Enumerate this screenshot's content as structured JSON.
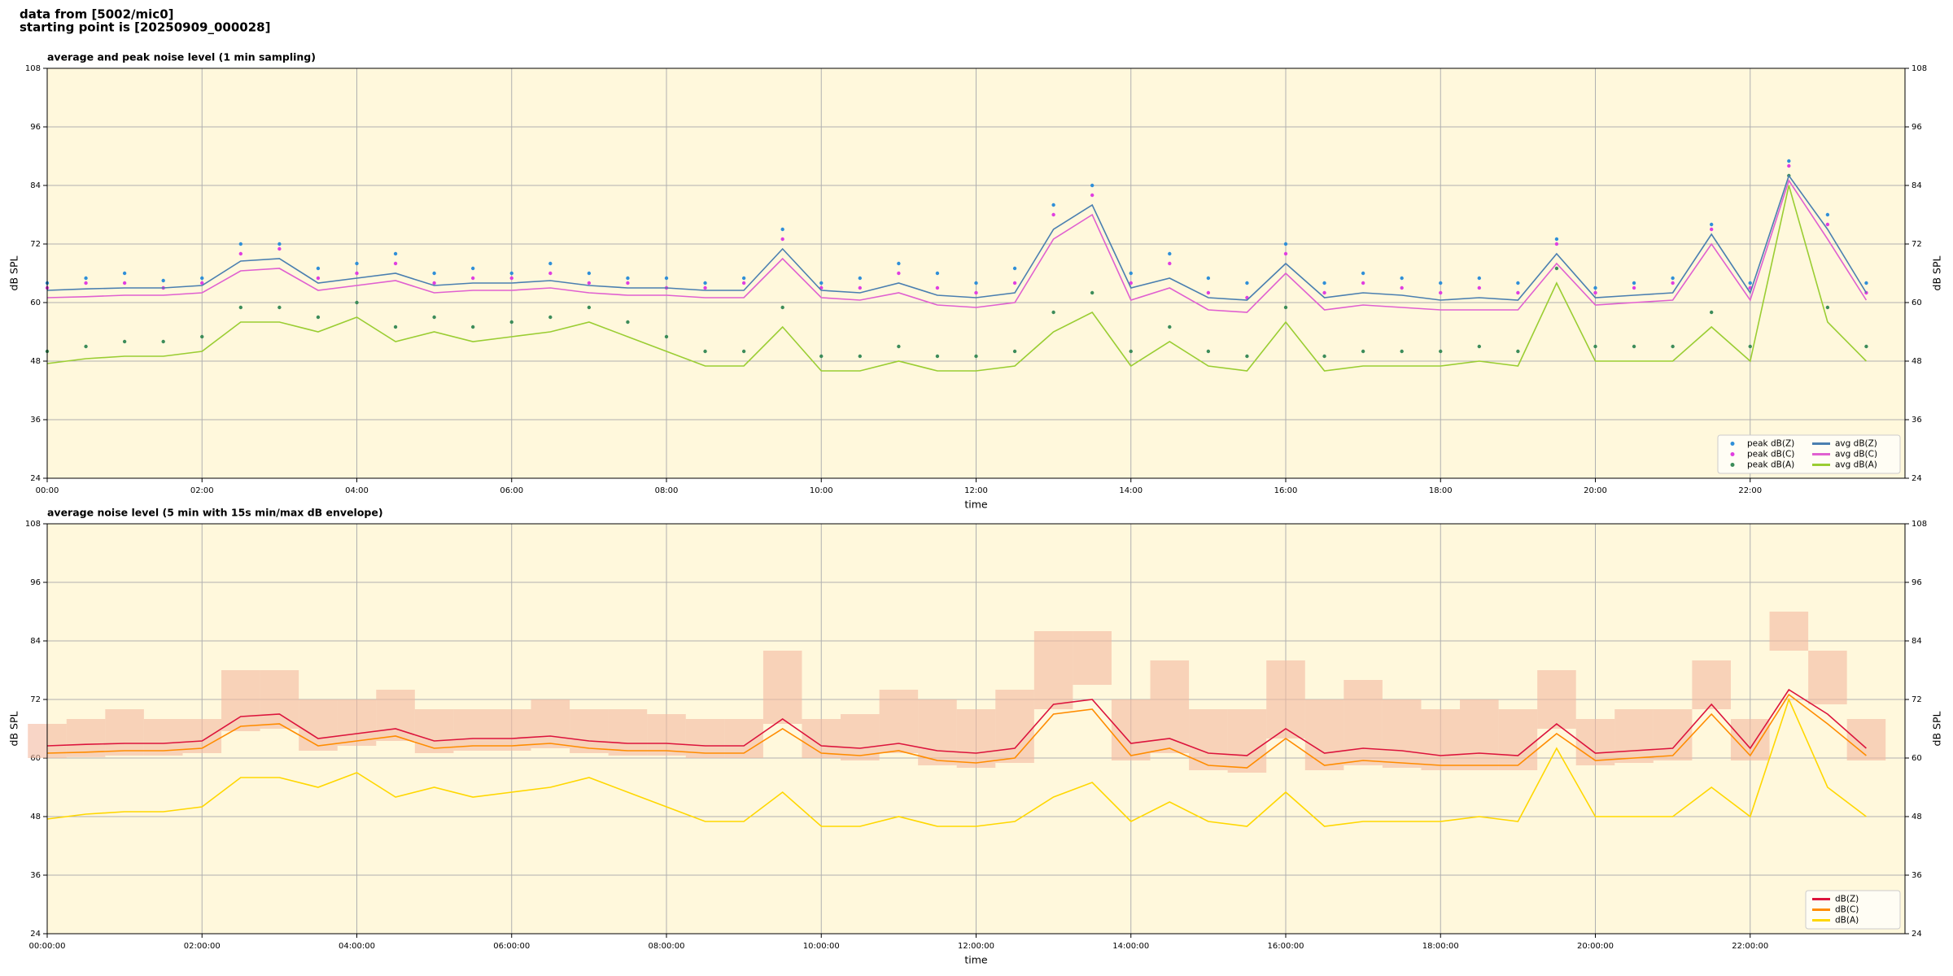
{
  "header": {
    "line1": "data from [5002/mic0]",
    "line2": "starting point is [20250909_000028]"
  },
  "chart_data": [
    {
      "type": "line",
      "title": "average and peak noise level (1 min sampling)",
      "xlabel": "time",
      "ylabel": "dB SPL",
      "xlim": [
        0,
        24
      ],
      "ylim": [
        24,
        108
      ],
      "yticks": [
        24,
        36,
        48,
        60,
        72,
        84,
        96,
        108
      ],
      "xticks": [
        {
          "value": 0,
          "label": "00:00"
        },
        {
          "value": 2,
          "label": "02:00"
        },
        {
          "value": 4,
          "label": "04:00"
        },
        {
          "value": 6,
          "label": "06:00"
        },
        {
          "value": 8,
          "label": "08:00"
        },
        {
          "value": 10,
          "label": "10:00"
        },
        {
          "value": 12,
          "label": "12:00"
        },
        {
          "value": 14,
          "label": "14:00"
        },
        {
          "value": 16,
          "label": "16:00"
        },
        {
          "value": 18,
          "label": "18:00"
        },
        {
          "value": 20,
          "label": "20:00"
        },
        {
          "value": 22,
          "label": "22:00"
        }
      ],
      "grid": true,
      "legend": "lower right",
      "background": "#fff8dc",
      "x": [
        0,
        0.5,
        1,
        1.5,
        2,
        2.5,
        3,
        3.5,
        4,
        4.5,
        5,
        5.5,
        6,
        6.5,
        7,
        7.5,
        8,
        8.5,
        9,
        9.5,
        10,
        10.5,
        11,
        11.5,
        12,
        12.5,
        13,
        13.5,
        14,
        14.5,
        15,
        15.5,
        16,
        16.5,
        17,
        17.5,
        18,
        18.5,
        19,
        19.5,
        20,
        20.5,
        21,
        21.5,
        22,
        22.5,
        23,
        23.5
      ],
      "series": [
        {
          "name": "peak dB(Z)",
          "type": "scatter",
          "color": "#2f8fd8",
          "values": [
            64,
            65,
            66,
            64.5,
            65,
            72,
            72,
            67,
            68,
            70,
            66,
            67,
            66,
            68,
            66,
            65,
            65,
            64,
            65,
            75,
            64,
            65,
            68,
            66,
            64,
            67,
            80,
            84,
            66,
            70,
            65,
            64,
            72,
            64,
            66,
            65,
            64,
            65,
            64,
            73,
            63,
            64,
            65,
            76,
            64,
            89,
            78,
            64
          ]
        },
        {
          "name": "peak dB(C)",
          "type": "scatter",
          "color": "#e03ee0",
          "values": [
            63,
            64,
            64,
            63,
            64,
            70,
            71,
            65,
            66,
            68,
            64,
            65,
            65,
            66,
            64,
            64,
            63,
            63,
            64,
            73,
            63,
            63,
            66,
            63,
            62,
            64,
            78,
            82,
            64,
            68,
            62,
            61,
            70,
            62,
            64,
            63,
            62,
            63,
            62,
            72,
            62,
            63,
            64,
            75,
            63,
            88,
            76,
            62
          ]
        },
        {
          "name": "peak dB(A)",
          "type": "scatter",
          "color": "#3c8c5a",
          "values": [
            50,
            51,
            52,
            52,
            53,
            59,
            59,
            57,
            60,
            55,
            57,
            55,
            56,
            57,
            59,
            56,
            53,
            50,
            50,
            59,
            49,
            49,
            51,
            49,
            49,
            50,
            58,
            62,
            50,
            55,
            50,
            49,
            59,
            49,
            50,
            50,
            50,
            51,
            50,
            67,
            51,
            51,
            51,
            58,
            51,
            86,
            59,
            51
          ]
        },
        {
          "name": "avg dB(Z)",
          "type": "line",
          "color": "#4a7fb0",
          "values": [
            62.5,
            62.8,
            63,
            63,
            63.5,
            68.5,
            69,
            64,
            65,
            66,
            63.5,
            64,
            64,
            64.5,
            63.5,
            63,
            63,
            62.5,
            62.5,
            71,
            62.5,
            62,
            64,
            61.5,
            61,
            62,
            75,
            80,
            63,
            65,
            61,
            60.5,
            68,
            61,
            62,
            61.5,
            60.5,
            61,
            60.5,
            70,
            61,
            61.5,
            62,
            74,
            62,
            86,
            75,
            62
          ]
        },
        {
          "name": "avg dB(C)",
          "type": "line",
          "color": "#e060d0",
          "values": [
            61,
            61.2,
            61.5,
            61.5,
            62,
            66.5,
            67,
            62.5,
            63.5,
            64.5,
            62,
            62.5,
            62.5,
            63,
            62,
            61.5,
            61.5,
            61,
            61,
            69,
            61,
            60.5,
            62,
            59.5,
            59,
            60,
            73,
            78,
            60.5,
            63,
            58.5,
            58,
            66,
            58.5,
            59.5,
            59,
            58.5,
            58.5,
            58.5,
            68,
            59.5,
            60,
            60.5,
            72,
            60.5,
            85,
            73,
            60.5
          ]
        },
        {
          "name": "avg dB(A)",
          "type": "line",
          "color": "#9acd32",
          "values": [
            47.5,
            48.5,
            49,
            49,
            50,
            56,
            56,
            54,
            57,
            52,
            54,
            52,
            53,
            54,
            56,
            53,
            50,
            47,
            47,
            55,
            46,
            46,
            48,
            46,
            46,
            47,
            54,
            58,
            47,
            52,
            47,
            46,
            56,
            46,
            47,
            47,
            47,
            48,
            47,
            64,
            48,
            48,
            48,
            55,
            48,
            84,
            56,
            48
          ]
        }
      ]
    },
    {
      "type": "line",
      "title": "average noise level (5 min with 15s min/max dB envelope)",
      "xlabel": "time",
      "ylabel": "dB SPL",
      "xlim": [
        0,
        24
      ],
      "ylim": [
        24,
        108
      ],
      "yticks": [
        24,
        36,
        48,
        60,
        72,
        84,
        96,
        108
      ],
      "xticks": [
        {
          "value": 0,
          "label": "00:00:00"
        },
        {
          "value": 2,
          "label": "02:00:00"
        },
        {
          "value": 4,
          "label": "04:00:00"
        },
        {
          "value": 6,
          "label": "06:00:00"
        },
        {
          "value": 8,
          "label": "08:00:00"
        },
        {
          "value": 10,
          "label": "10:00:00"
        },
        {
          "value": 12,
          "label": "12:00:00"
        },
        {
          "value": 14,
          "label": "14:00:00"
        },
        {
          "value": 16,
          "label": "16:00:00"
        },
        {
          "value": 18,
          "label": "18:00:00"
        },
        {
          "value": 20,
          "label": "20:00:00"
        },
        {
          "value": 22,
          "label": "22:00:00"
        }
      ],
      "grid": true,
      "legend": "lower right",
      "background": "#fff8dc",
      "x": [
        0,
        0.5,
        1,
        1.5,
        2,
        2.5,
        3,
        3.5,
        4,
        4.5,
        5,
        5.5,
        6,
        6.5,
        7,
        7.5,
        8,
        8.5,
        9,
        9.5,
        10,
        10.5,
        11,
        11.5,
        12,
        12.5,
        13,
        13.5,
        14,
        14.5,
        15,
        15.5,
        16,
        16.5,
        17,
        17.5,
        18,
        18.5,
        19,
        19.5,
        20,
        20.5,
        21,
        21.5,
        22,
        22.5,
        23,
        23.5
      ],
      "envelope": {
        "color": "#f4b9a0",
        "lower": [
          60,
          60.2,
          60.5,
          60.5,
          61,
          65.5,
          66,
          61.5,
          62.5,
          63.5,
          61,
          61.5,
          61.5,
          62,
          61,
          60.5,
          60.5,
          60,
          60,
          67,
          60,
          59.5,
          61,
          58.5,
          58,
          59,
          70,
          75,
          59.5,
          61,
          57.5,
          57,
          64,
          57.5,
          58.5,
          58,
          57.5,
          57.5,
          57.5,
          66,
          58.5,
          59,
          59.5,
          70,
          59.5,
          82,
          71,
          59.5
        ],
        "upper": [
          67,
          68,
          70,
          68,
          68,
          78,
          78,
          72,
          72,
          74,
          70,
          70,
          70,
          72,
          70,
          70,
          69,
          68,
          68,
          82,
          68,
          69,
          74,
          72,
          70,
          74,
          86,
          86,
          72,
          80,
          70,
          70,
          80,
          72,
          76,
          72,
          70,
          72,
          70,
          78,
          68,
          70,
          70,
          80,
          68,
          90,
          82,
          68
        ]
      },
      "series": [
        {
          "name": "dB(Z)",
          "type": "line",
          "color": "#dc143c",
          "values": [
            62.5,
            62.8,
            63,
            63,
            63.5,
            68.5,
            69,
            64,
            65,
            66,
            63.5,
            64,
            64,
            64.5,
            63.5,
            63,
            63,
            62.5,
            62.5,
            68,
            62.5,
            62,
            63,
            61.5,
            61,
            62,
            71,
            72,
            63,
            64,
            61,
            60.5,
            66,
            61,
            62,
            61.5,
            60.5,
            61,
            60.5,
            67,
            61,
            61.5,
            62,
            71,
            62,
            74,
            69,
            62
          ]
        },
        {
          "name": "dB(C)",
          "type": "line",
          "color": "#ff8c00",
          "values": [
            61,
            61.2,
            61.5,
            61.5,
            62,
            66.5,
            67,
            62.5,
            63.5,
            64.5,
            62,
            62.5,
            62.5,
            63,
            62,
            61.5,
            61.5,
            61,
            61,
            66,
            61,
            60.5,
            61.5,
            59.5,
            59,
            60,
            69,
            70,
            60.5,
            62,
            58.5,
            58,
            64,
            58.5,
            59.5,
            59,
            58.5,
            58.5,
            58.5,
            65,
            59.5,
            60,
            60.5,
            69,
            60.5,
            73,
            67,
            60.5
          ]
        },
        {
          "name": "dB(A)",
          "type": "line",
          "color": "#ffd700",
          "values": [
            47.5,
            48.5,
            49,
            49,
            50,
            56,
            56,
            54,
            57,
            52,
            54,
            52,
            53,
            54,
            56,
            53,
            50,
            47,
            47,
            53,
            46,
            46,
            48,
            46,
            46,
            47,
            52,
            55,
            47,
            51,
            47,
            46,
            53,
            46,
            47,
            47,
            47,
            48,
            47,
            62,
            48,
            48,
            48,
            54,
            48,
            72,
            54,
            48
          ]
        }
      ]
    }
  ]
}
